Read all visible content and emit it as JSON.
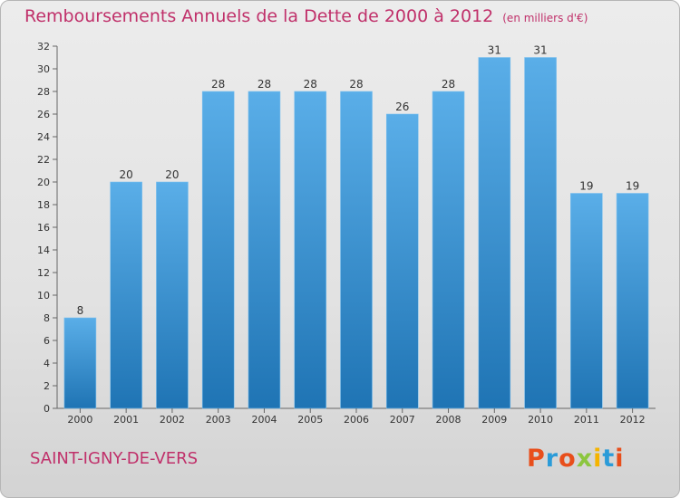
{
  "title": "Remboursements Annuels de la Dette de 2000 à 2012",
  "subtitle": "(en milliers d'€)",
  "city": "SAINT-IGNY-DE-VERS",
  "logo": {
    "text": "Proxiti",
    "letters": [
      {
        "char": "P",
        "color": "#e84e1b"
      },
      {
        "char": "r",
        "color": "#2b9bd8"
      },
      {
        "char": "o",
        "color": "#e84e1b"
      },
      {
        "char": "x",
        "color": "#8cc63e"
      },
      {
        "char": "i",
        "color": "#f5b400"
      },
      {
        "char": "t",
        "color": "#2b9bd8"
      },
      {
        "char": "i",
        "color": "#e84e1b"
      }
    ]
  },
  "colors": {
    "accent": "#c0306a",
    "bar_top": "#5aaee8",
    "bar_bottom": "#1f74b4"
  },
  "chart_data": {
    "type": "bar",
    "title": "Remboursements Annuels de la Dette de 2000 à 2012",
    "subtitle": "(en milliers d'€)",
    "categories": [
      "2000",
      "2001",
      "2002",
      "2003",
      "2004",
      "2005",
      "2006",
      "2007",
      "2008",
      "2009",
      "2010",
      "2011",
      "2012"
    ],
    "values": [
      8,
      20,
      20,
      28,
      28,
      28,
      28,
      26,
      28,
      31,
      31,
      19,
      19
    ],
    "ylim": [
      0,
      32
    ],
    "yticks": [
      0,
      2,
      4,
      6,
      8,
      10,
      12,
      14,
      16,
      18,
      20,
      22,
      24,
      26,
      28,
      30,
      32
    ],
    "grid": false,
    "legend": "none",
    "data_labels": true
  }
}
